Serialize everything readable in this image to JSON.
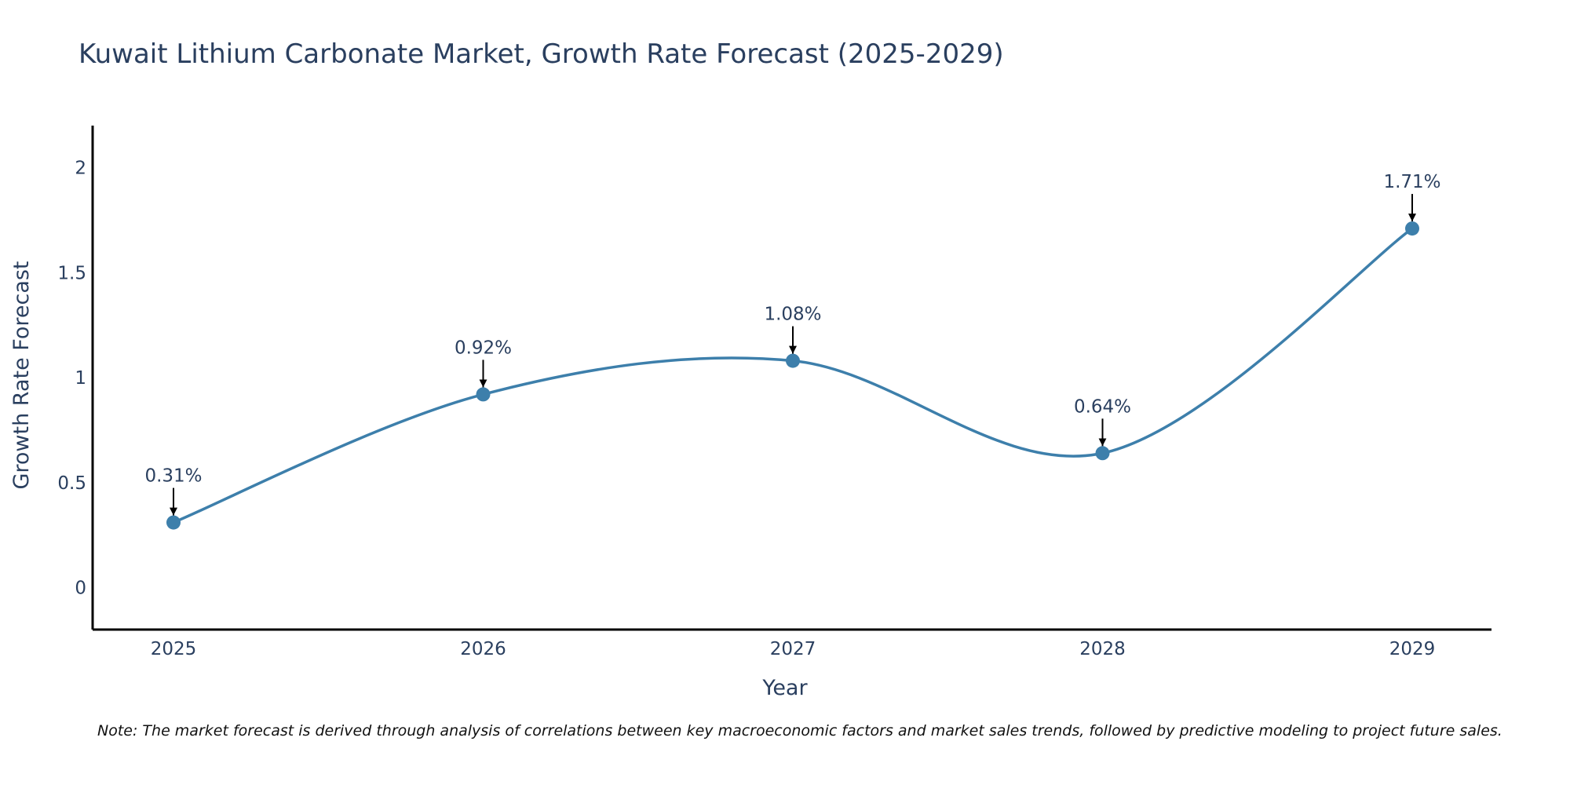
{
  "chart_data": {
    "type": "line",
    "title": "Kuwait Lithium Carbonate Market, Growth Rate Forecast (2025-2029)",
    "xlabel": "Year",
    "ylabel": "Growth Rate Forecast",
    "categories": [
      "2025",
      "2026",
      "2027",
      "2028",
      "2029"
    ],
    "values": [
      0.31,
      0.92,
      1.08,
      0.64,
      1.71
    ],
    "data_labels": [
      "0.31%",
      "0.92%",
      "1.08%",
      "0.64%",
      "1.71%"
    ],
    "y_ticks": [
      "0",
      "0.5",
      "1",
      "1.5",
      "2"
    ],
    "y_tick_values": [
      0,
      0.5,
      1,
      1.5,
      2
    ],
    "ylim": [
      -0.2,
      2.2
    ],
    "line_shape": "spline",
    "grid": false,
    "colors": {
      "line": "#3d7fab",
      "marker": "#3d7fab",
      "arrow": "#000000",
      "text": "#2a3f5f"
    }
  },
  "note": "Note: The market forecast is derived through analysis of correlations between key macroeconomic factors and market sales trends, followed by predictive modeling to project future sales."
}
